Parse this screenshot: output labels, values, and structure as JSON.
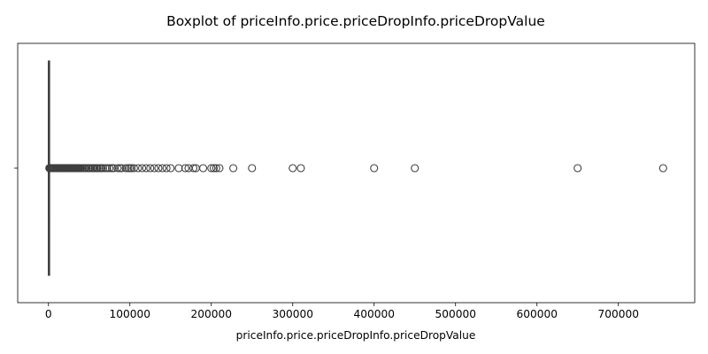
{
  "chart_data": {
    "type": "boxplot",
    "title": "Boxplot of priceInfo.price.priceDropInfo.priceDropValue",
    "xlabel": "priceInfo.price.priceDropInfo.priceDropValue",
    "ylabel": "",
    "xlim": [
      -37800,
      793800
    ],
    "x_ticks": [
      0,
      100000,
      200000,
      300000,
      400000,
      500000,
      600000,
      700000
    ],
    "x_tick_labels": [
      "0",
      "100000",
      "200000",
      "300000",
      "400000",
      "500000",
      "600000",
      "700000"
    ],
    "y_ticks": [
      ""
    ],
    "grid": false,
    "box": {
      "q1": 0,
      "median": 0,
      "q3": 300,
      "whisker_low": 0,
      "whisker_high": 700
    },
    "outliers": [
      1000,
      1500,
      2000,
      2500,
      3000,
      3500,
      4000,
      4500,
      5000,
      5500,
      6000,
      7000,
      8000,
      9000,
      10000,
      11000,
      12000,
      13000,
      14000,
      15000,
      16000,
      17000,
      18000,
      19000,
      20000,
      21000,
      22000,
      23000,
      24000,
      25000,
      26000,
      27000,
      28000,
      29000,
      30000,
      31000,
      32000,
      33000,
      34000,
      35000,
      36000,
      37000,
      38000,
      39000,
      40000,
      42000,
      44000,
      45000,
      47000,
      49000,
      50000,
      52000,
      54000,
      55000,
      57000,
      59000,
      60000,
      62000,
      64000,
      65000,
      67000,
      70000,
      72000,
      75000,
      78000,
      80000,
      85000,
      88000,
      90000,
      95000,
      98000,
      100000,
      102000,
      105000,
      110000,
      115000,
      120000,
      125000,
      130000,
      135000,
      140000,
      145000,
      150000,
      160000,
      168000,
      172000,
      178000,
      181000,
      190000,
      200000,
      203000,
      206000,
      210000,
      227000,
      250000,
      300000,
      310000,
      400000,
      450000,
      650000,
      755000
    ],
    "colors": {
      "box_edge": "#3f3f3f",
      "outlier_edge": "#3f3f3f",
      "axis": "#000000"
    }
  }
}
